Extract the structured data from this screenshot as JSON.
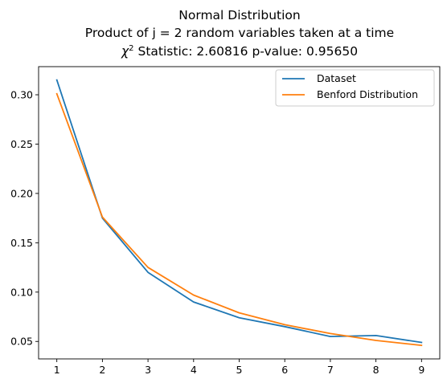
{
  "chart_data": {
    "type": "line",
    "title_lines": [
      "Normal Distribution",
      "Product of j = 2 random variables taken at a time",
      "Statistic: 2.60816 p-value: 0.95650"
    ],
    "title_symbol": "χ",
    "title_symbol_sup": "2",
    "xlabel": "",
    "ylabel": "",
    "x": [
      1,
      2,
      3,
      4,
      5,
      6,
      7,
      8,
      9
    ],
    "xticks": [
      1,
      2,
      3,
      4,
      5,
      6,
      7,
      8,
      9
    ],
    "yticks": [
      0.05,
      0.1,
      0.15,
      0.2,
      0.25,
      0.3
    ],
    "ytick_labels": [
      "0.05",
      "0.10",
      "0.15",
      "0.20",
      "0.25",
      "0.30"
    ],
    "xlim": [
      0.6,
      9.4
    ],
    "ylim": [
      0.0323,
      0.3285
    ],
    "grid": false,
    "legend_position": "top-right",
    "series": [
      {
        "name": "Dataset",
        "color": "#1f77b4",
        "values": [
          0.315,
          0.175,
          0.12,
          0.09,
          0.074,
          0.065,
          0.055,
          0.056,
          0.049
        ]
      },
      {
        "name": "Benford Distribution",
        "color": "#ff7f0e",
        "values": [
          0.301,
          0.176,
          0.125,
          0.097,
          0.079,
          0.067,
          0.058,
          0.051,
          0.046
        ]
      }
    ]
  }
}
